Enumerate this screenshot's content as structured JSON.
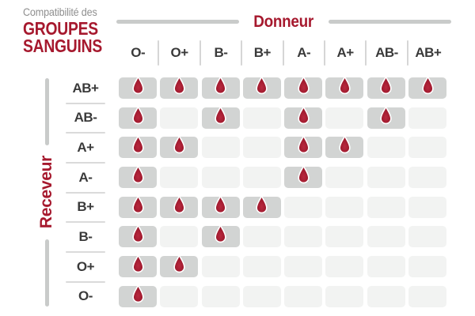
{
  "title": {
    "kicker": "Compatibilité des",
    "line1": "GROUPES",
    "line2": "SANGUINS"
  },
  "axes": {
    "donor_label": "Donneur",
    "receiver_label": "Receveur"
  },
  "icons": {
    "compatible": "blood-drop-icon"
  },
  "colors": {
    "accent_red": "#a6192e",
    "drop_edge": "#9c1628",
    "drop_center": "#b32740",
    "cell_active": "#d2d4d3",
    "cell_inactive": "#f2f3f2",
    "axis_line_gray": "#c9cbca",
    "separator_gray": "#d9d9d9",
    "title_gray": "#8f8f8f",
    "label_dark": "#3a3a3a"
  },
  "chart_data": {
    "type": "heatmap",
    "title": "Compatibilité des groupes sanguins",
    "x_axis_label": "Donneur",
    "y_axis_label": "Receveur",
    "columns": [
      "O-",
      "O+",
      "B-",
      "B+",
      "A-",
      "A+",
      "AB-",
      "AB+"
    ],
    "rows": [
      "AB+",
      "AB-",
      "A+",
      "A-",
      "B+",
      "B-",
      "O+",
      "O-"
    ],
    "cell_encoding": "1 = compatible (blood drop shown on dark cell), 0 = incompatible (empty light cell)",
    "matrix": [
      [
        1,
        1,
        1,
        1,
        1,
        1,
        1,
        1
      ],
      [
        1,
        0,
        1,
        0,
        1,
        0,
        1,
        0
      ],
      [
        1,
        1,
        0,
        0,
        1,
        1,
        0,
        0
      ],
      [
        1,
        0,
        0,
        0,
        1,
        0,
        0,
        0
      ],
      [
        1,
        1,
        1,
        1,
        0,
        0,
        0,
        0
      ],
      [
        1,
        0,
        1,
        0,
        0,
        0,
        0,
        0
      ],
      [
        1,
        1,
        0,
        0,
        0,
        0,
        0,
        0
      ],
      [
        1,
        0,
        0,
        0,
        0,
        0,
        0,
        0
      ]
    ]
  }
}
